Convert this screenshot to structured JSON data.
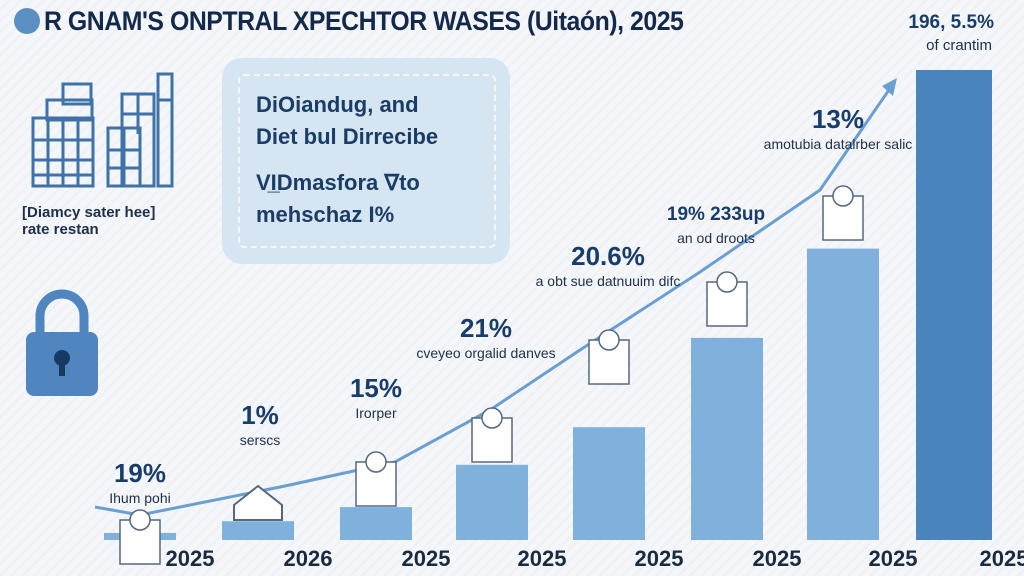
{
  "title": "R GNAM'S ONPTRAL XPECHTOR WASES (Uitaón), 2025",
  "building_caption": [
    "[Diamcy sater hee]",
    "rate restan"
  ],
  "panel": {
    "lines": [
      "DiOiandug, and",
      "Diet bul Dirrecibe",
      "VI̲Dmasfora ∇to",
      "mehschaz I%"
    ]
  },
  "top_right": {
    "value": "196, 5.5%",
    "label": "of crantim"
  },
  "colors": {
    "bar_light": "#7fb1dc",
    "bar_dark": "#4a84bd",
    "line": "#6a9fd0",
    "text": "#183d6a",
    "panel": "#d5e6f2"
  },
  "icons": [
    "logo-circle",
    "buildings-icon",
    "lock-icon",
    "house-icon",
    "document-icon",
    "trend-arrow"
  ],
  "chart_data": {
    "type": "bar",
    "categories": [
      "2025",
      "2026",
      "2025",
      "2025",
      "2025",
      "2025",
      "2025",
      "2025"
    ],
    "values": [
      1.5,
      4,
      7,
      16,
      24,
      43,
      62,
      100
    ],
    "value_scale": "relative to tallest bar (no axis printed)",
    "trend_line": true,
    "grid": false,
    "annotations": [
      {
        "value": "19%",
        "label": "Ihum pohi"
      },
      {
        "value": "1%",
        "label": "sersсs"
      },
      {
        "value": "15%",
        "label": "Irorper"
      },
      {
        "value": "21%",
        "label": "cveyeo orgalid danves"
      },
      {
        "value": "20.6%",
        "label": "a obt sue datnuuim difc"
      },
      {
        "value": "19% 233up",
        "label": "an od droots"
      },
      {
        "value": "13%",
        "label": "amotubia datalrber salic"
      }
    ]
  }
}
